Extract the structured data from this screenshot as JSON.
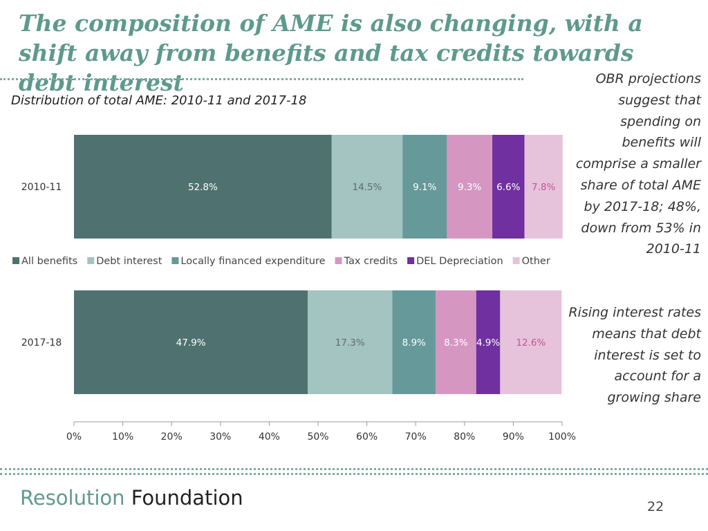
{
  "slide": {
    "title": "The composition of AME is also changing, with a shift away from benefits and tax credits towards debt interest",
    "page_number": "22"
  },
  "sidebar": {
    "para1": "OBR projections suggest that spending on benefits will comprise a smaller share of total AME by 2017-18; 48%, down from 53% in 2010-11",
    "para2": "Rising interest rates means that debt interest is set to account for a growing share"
  },
  "footer": {
    "logo_word1": "Resolution",
    "logo_word2": "Foundation"
  },
  "chart_data": {
    "type": "bar",
    "orientation": "horizontal",
    "stacked": true,
    "title": "Distribution of total AME: 2010-11 and 2017-18",
    "categories": [
      "2010-11",
      "2017-18"
    ],
    "series": [
      {
        "name": "All benefits",
        "color": "#4f7270",
        "label_color": "#ffffff",
        "values": [
          52.8,
          47.9
        ]
      },
      {
        "name": "Debt interest",
        "color": "#a3c4c1",
        "label_color": "#5e6e6d",
        "values": [
          14.5,
          17.3
        ]
      },
      {
        "name": "Locally financed expenditure",
        "color": "#66999a",
        "label_color": "#ffffff",
        "values": [
          9.1,
          8.9
        ]
      },
      {
        "name": "Tax credits",
        "color": "#d596c2",
        "label_color": "#ffffff",
        "values": [
          9.3,
          8.3
        ]
      },
      {
        "name": "DEL Depreciation",
        "color": "#7030a0",
        "label_color": "#ffffff",
        "values": [
          6.6,
          4.9
        ]
      },
      {
        "name": "Other",
        "color": "#e6c3da",
        "label_color": "#c0559a",
        "values": [
          7.8,
          12.6
        ]
      }
    ],
    "data_labels": [
      [
        "52.8%",
        "14.5%",
        "9.1%",
        "9.3%",
        "6.6%",
        "7.8%"
      ],
      [
        "47.9%",
        "17.3%",
        "8.9%",
        "8.3%",
        "4.9%",
        "12.6%"
      ]
    ],
    "x_ticks": [
      "0%",
      "10%",
      "20%",
      "30%",
      "40%",
      "50%",
      "60%",
      "70%",
      "80%",
      "90%",
      "100%"
    ],
    "xlim": [
      0,
      100
    ],
    "legend_position": "between-bars",
    "xlabel": "",
    "ylabel": ""
  }
}
